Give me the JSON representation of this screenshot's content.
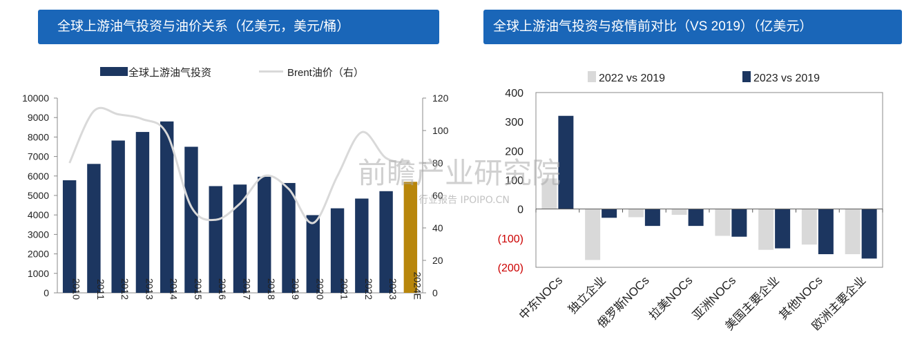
{
  "charts": {
    "left_title": "全球上游油气投资与油价关系（亿美元，美元/桶）",
    "right_title": "全球上游油气投资与疫情前对比（VS 2019）（亿美元）"
  },
  "watermark": {
    "main": "前瞻产业研究院",
    "sub": "行业报告 IPOIPO.CN"
  },
  "chart_data": [
    {
      "type": "bar",
      "categories": [
        "2010",
        "2011",
        "2012",
        "2013",
        "2014",
        "2015",
        "2016",
        "2017",
        "2018",
        "2019",
        "2020",
        "2021",
        "2022",
        "2023",
        "2024E"
      ],
      "series": [
        {
          "name": "全球上游油气投资",
          "values": [
            5780,
            6620,
            7820,
            8260,
            8800,
            7500,
            5480,
            5560,
            5960,
            5640,
            3990,
            4340,
            4840,
            5220,
            5700
          ],
          "color": "#1c3660",
          "highlight_color": "#b8860b"
        },
        {
          "name": "Brent油价（右）",
          "type": "line",
          "axis": "right",
          "values": [
            80,
            112,
            110,
            107,
            98,
            53,
            45,
            55,
            72,
            64,
            43,
            72,
            99,
            83,
            80
          ],
          "color": "#d9d9d9"
        }
      ],
      "ylim": [
        0,
        10000
      ],
      "yticks": [
        "0",
        "1000",
        "2000",
        "3000",
        "4000",
        "5000",
        "6000",
        "7000",
        "8000",
        "9000",
        "10000"
      ],
      "y2lim": [
        0,
        120
      ],
      "y2ticks": [
        "0",
        "20",
        "40",
        "60",
        "80",
        "100",
        "120"
      ],
      "legend": "top"
    },
    {
      "type": "bar",
      "categories": [
        "中东NOCs",
        "独立企业",
        "俄罗斯NOCs",
        "拉美NOCs",
        "亚洲NOCs",
        "美国主要企业",
        "其他NOCs",
        "欧洲主要企业"
      ],
      "series": [
        {
          "name": "2022 vs 2019",
          "values": [
            105,
            -175,
            -28,
            -20,
            -92,
            -140,
            -122,
            -155
          ],
          "color": "#d9d9d9"
        },
        {
          "name": "2023 vs 2019",
          "values": [
            320,
            -30,
            -58,
            -58,
            -95,
            -135,
            -155,
            -170
          ],
          "color": "#1c3660"
        }
      ],
      "ylim": [
        -200,
        400
      ],
      "yticks": [
        "(200)",
        "(100)",
        "0",
        "100",
        "200",
        "300",
        "400"
      ],
      "grid": false,
      "legend": "top"
    }
  ]
}
